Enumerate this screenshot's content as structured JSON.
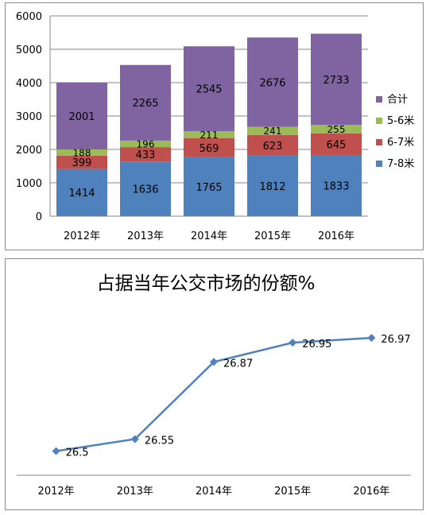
{
  "chart_data": [
    {
      "type": "bar",
      "stacked": true,
      "title": "",
      "categories": [
        "2012年",
        "2013年",
        "2014年",
        "2015年",
        "2016年"
      ],
      "series": [
        {
          "name": "7-8米",
          "values": [
            1414,
            1636,
            1765,
            1812,
            1833
          ],
          "color": "#4f81bd"
        },
        {
          "name": "6-7米",
          "values": [
            399,
            433,
            569,
            623,
            645
          ],
          "color": "#c0504d"
        },
        {
          "name": "5-6米",
          "values": [
            188,
            196,
            211,
            241,
            255
          ],
          "color": "#9bbb59"
        },
        {
          "name": "合计",
          "values": [
            2001,
            2265,
            2545,
            2676,
            2733
          ],
          "color": "#8064a2"
        }
      ],
      "ylim": [
        0,
        6000
      ],
      "yticks": [
        0,
        1000,
        2000,
        3000,
        4000,
        5000,
        6000
      ],
      "grid": true,
      "legend": "right"
    },
    {
      "type": "line",
      "title": "占据当年公交市场的份额%",
      "categories": [
        "2012年",
        "2013年",
        "2014年",
        "2015年",
        "2016年"
      ],
      "series": [
        {
          "name": "",
          "values": [
            26.5,
            26.55,
            26.87,
            26.95,
            26.97
          ],
          "color": "#4f81bd"
        }
      ],
      "ylim": [
        26.4,
        27.0
      ],
      "grid": false,
      "legend": "none"
    }
  ]
}
